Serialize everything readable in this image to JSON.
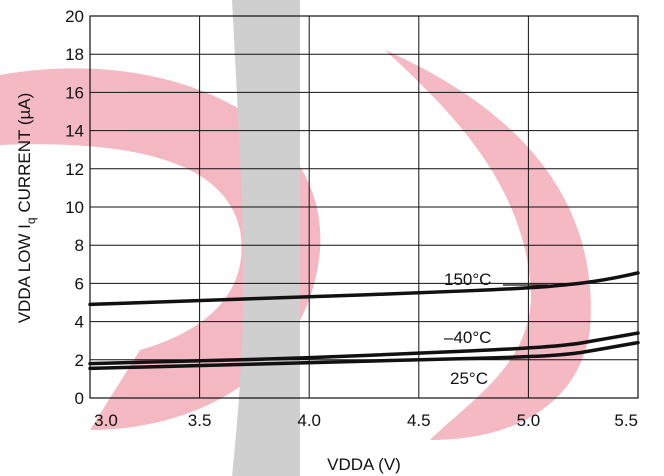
{
  "colors": {
    "watermark_red": "#ee8a9c",
    "watermark_gray": "#b0b0b0",
    "grid": "#111111",
    "series": "#111111"
  },
  "chart_data": {
    "type": "line",
    "title": "",
    "xlabel": "VDDA (V)",
    "ylabel_main": "VDDA LOW I",
    "ylabel_sub": "q",
    "ylabel_tail": " CURRENT (µA)",
    "xlim": [
      3.0,
      5.5
    ],
    "ylim": [
      0,
      20
    ],
    "x_ticks": [
      3.0,
      3.5,
      4.0,
      4.5,
      5.0,
      5.5
    ],
    "x_tick_labels": [
      "3.0",
      "3.5",
      "4.0",
      "4.5",
      "5.0",
      "5.5"
    ],
    "y_ticks": [
      0,
      2,
      4,
      6,
      8,
      10,
      12,
      14,
      16,
      18,
      20
    ],
    "y_tick_labels": [
      "0",
      "2",
      "4",
      "6",
      "8",
      "10",
      "12",
      "14",
      "16",
      "18",
      "20"
    ],
    "grid": true,
    "legend": "none",
    "series": [
      {
        "name": "150°C",
        "x": [
          3.0,
          3.5,
          4.0,
          4.5,
          5.0,
          5.2,
          5.3,
          5.4,
          5.5
        ],
        "y": [
          4.9,
          5.1,
          5.3,
          5.5,
          5.75,
          5.95,
          6.1,
          6.3,
          6.55
        ]
      },
      {
        "name": "–40°C",
        "x": [
          3.0,
          3.5,
          4.0,
          4.5,
          5.0,
          5.2,
          5.3,
          5.4,
          5.5
        ],
        "y": [
          1.8,
          1.95,
          2.1,
          2.35,
          2.6,
          2.8,
          3.0,
          3.2,
          3.4
        ]
      },
      {
        "name": "25°C",
        "x": [
          3.0,
          3.5,
          4.0,
          4.5,
          5.0,
          5.2,
          5.3,
          5.4,
          5.5
        ],
        "y": [
          1.55,
          1.7,
          1.85,
          2.0,
          2.15,
          2.3,
          2.5,
          2.7,
          2.9
        ]
      }
    ]
  }
}
